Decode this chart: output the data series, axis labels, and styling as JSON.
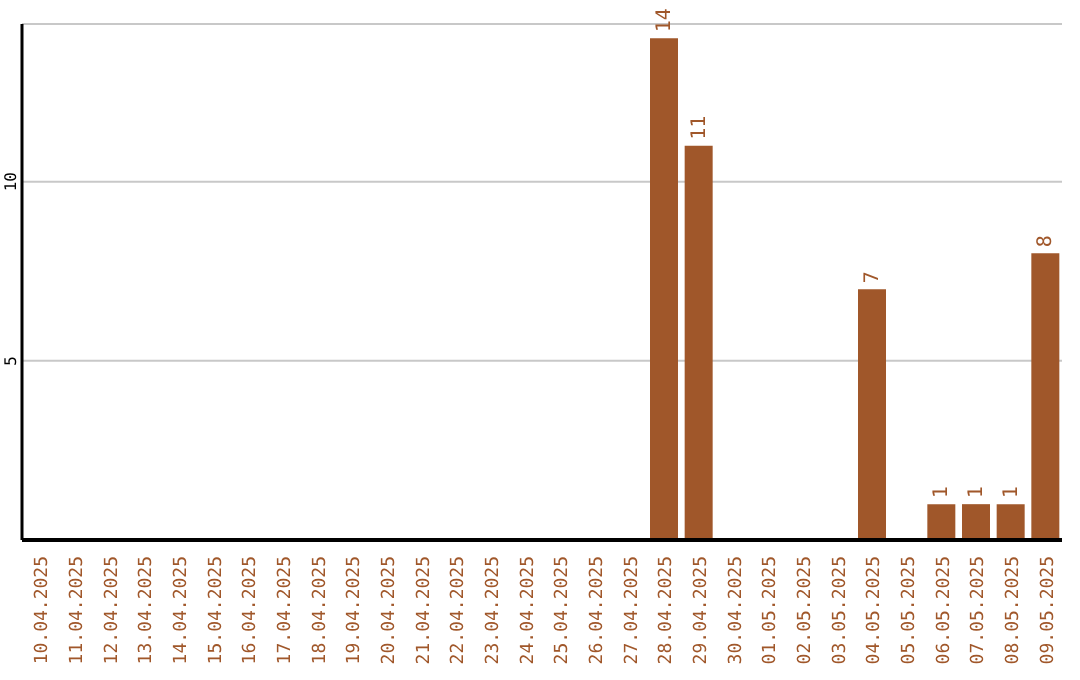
{
  "chart_data": {
    "type": "bar",
    "categories": [
      "10.04.2025",
      "11.04.2025",
      "12.04.2025",
      "13.04.2025",
      "14.04.2025",
      "15.04.2025",
      "16.04.2025",
      "17.04.2025",
      "18.04.2025",
      "19.04.2025",
      "20.04.2025",
      "21.04.2025",
      "22.04.2025",
      "23.04.2025",
      "24.04.2025",
      "25.04.2025",
      "26.04.2025",
      "27.04.2025",
      "28.04.2025",
      "29.04.2025",
      "30.04.2025",
      "01.05.2025",
      "02.05.2025",
      "03.05.2025",
      "04.05.2025",
      "05.05.2025",
      "06.05.2025",
      "07.05.2025",
      "08.05.2025",
      "09.05.2025"
    ],
    "values": [
      0,
      0,
      0,
      0,
      0,
      0,
      0,
      0,
      0,
      0,
      0,
      0,
      0,
      0,
      0,
      0,
      0,
      0,
      14,
      11,
      0,
      0,
      0,
      0,
      7,
      0,
      1,
      1,
      1,
      8
    ],
    "value_labels": [
      null,
      null,
      null,
      null,
      null,
      null,
      null,
      null,
      null,
      null,
      null,
      null,
      null,
      null,
      null,
      null,
      null,
      null,
      "14",
      "11",
      null,
      null,
      null,
      null,
      "7",
      null,
      "1",
      "1",
      "1",
      "8"
    ],
    "color": "#a0572a",
    "ylim": [
      0,
      14.4
    ],
    "yticks": [
      5,
      10
    ],
    "grid": "y"
  }
}
